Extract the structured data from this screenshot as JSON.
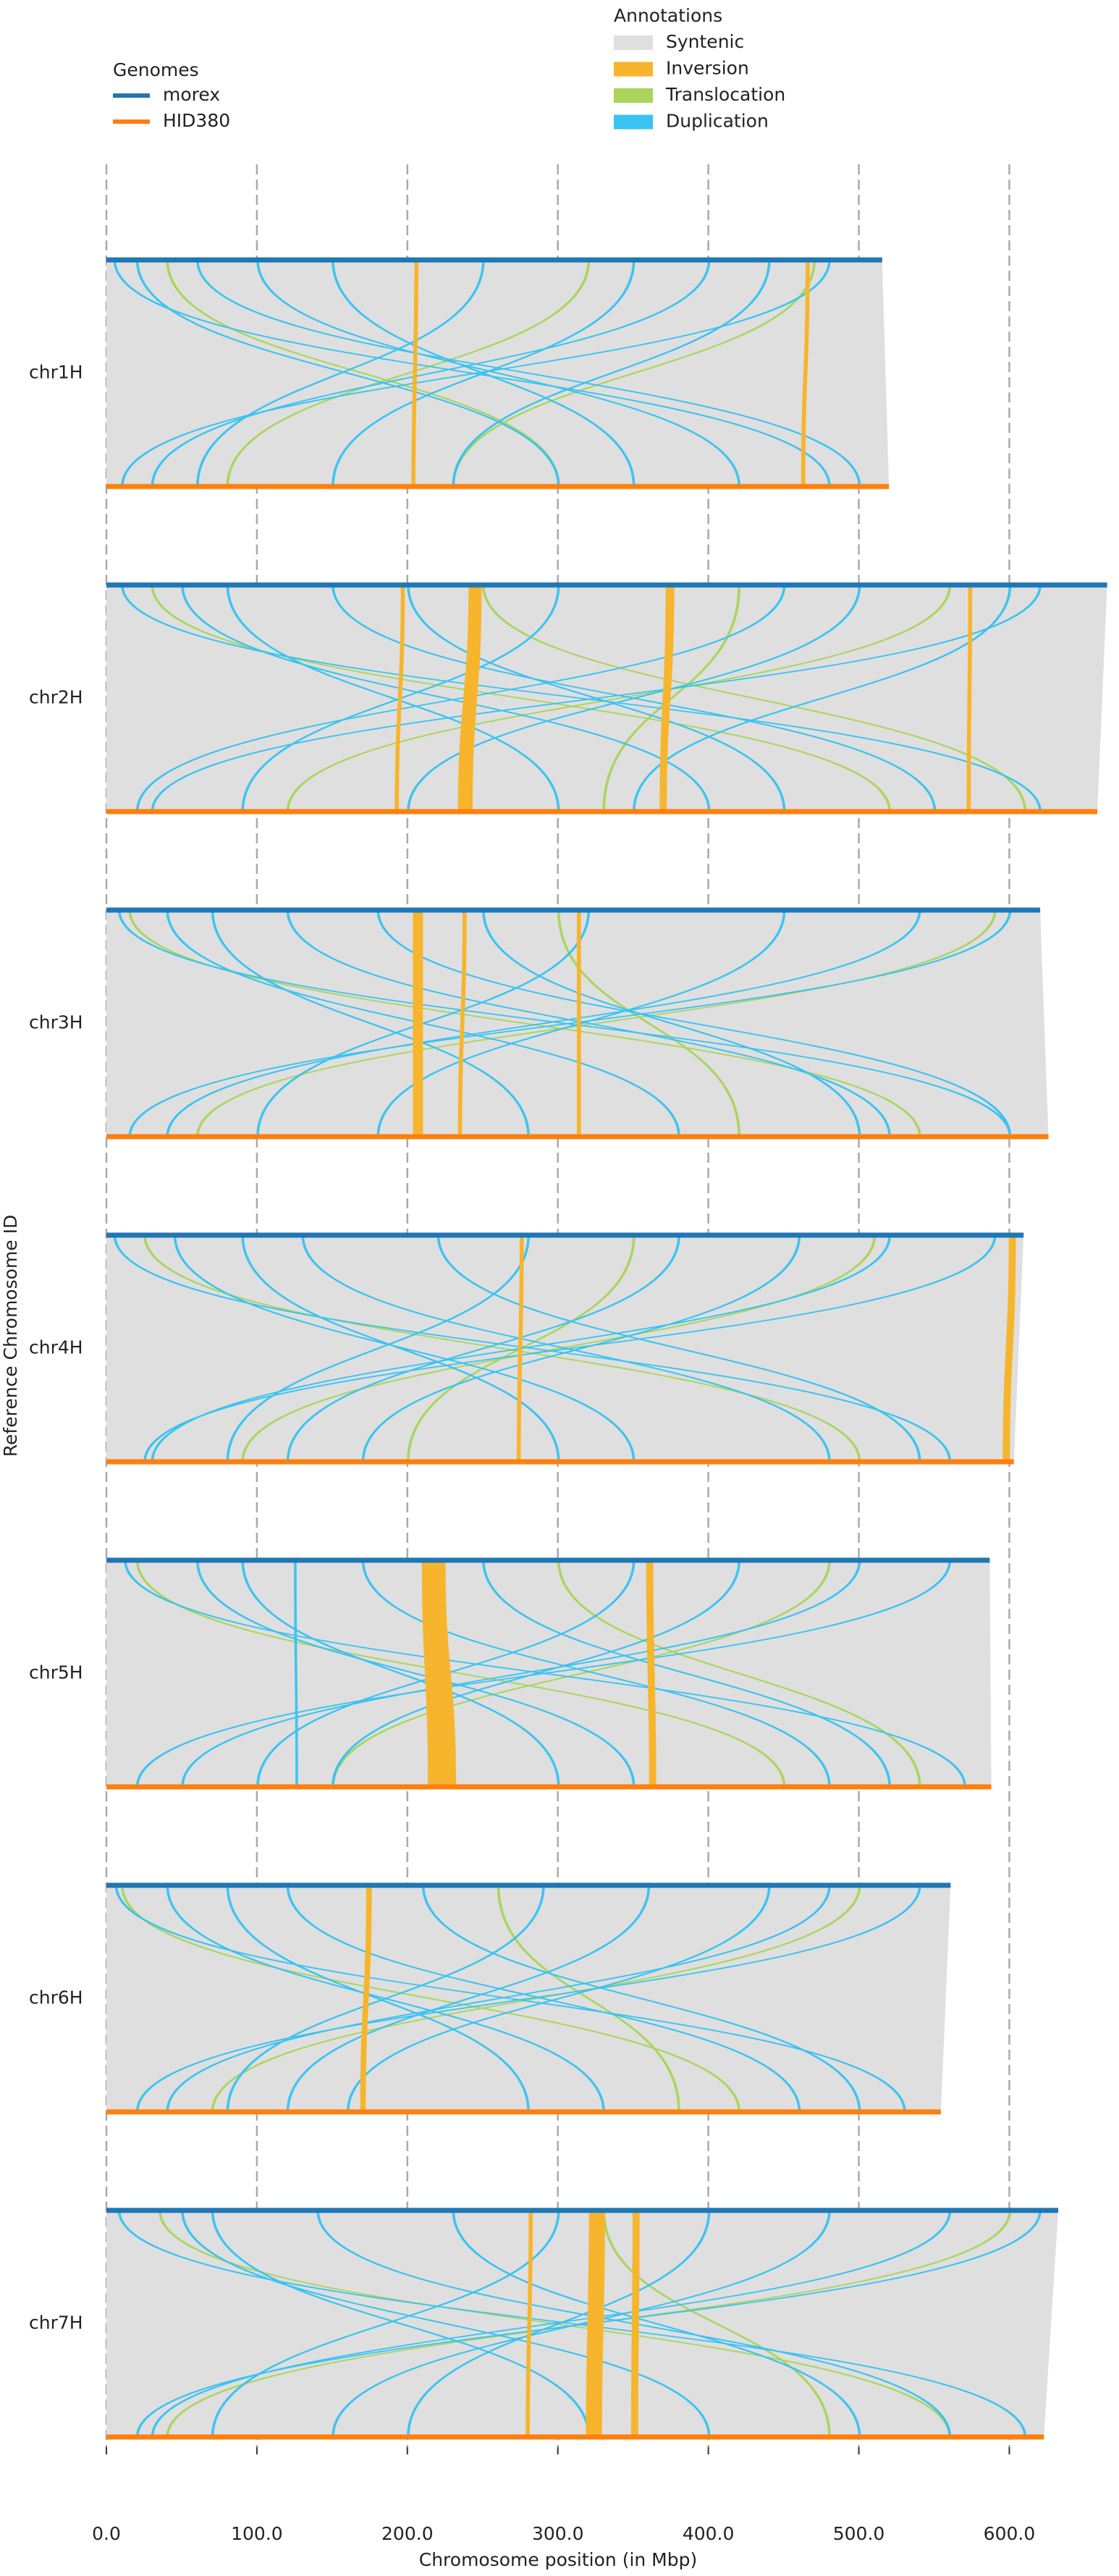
{
  "chart_data": {
    "type": "synteny",
    "xlabel": "Chromosome position (in Mbp)",
    "ylabel": "Reference Chromosome ID",
    "xlim": [
      0,
      670
    ],
    "xticks": [
      {
        "value": 0,
        "label": "0.0"
      },
      {
        "value": 100,
        "label": "100.0"
      },
      {
        "value": 200,
        "label": "200.0"
      },
      {
        "value": 300,
        "label": "300.0"
      },
      {
        "value": 400,
        "label": "400.0"
      },
      {
        "value": 500,
        "label": "500.0"
      },
      {
        "value": 600,
        "label": "600.0"
      }
    ],
    "grid": true,
    "categories": [
      "chr1H",
      "chr2H",
      "chr3H",
      "chr4H",
      "chr5H",
      "chr6H",
      "chr7H"
    ],
    "genomes_title": "Genomes",
    "series": [
      {
        "name": "morex",
        "color": "#1f77b4",
        "values": [
          515.5,
          665,
          620.5,
          609.5,
          587,
          561,
          632.5
        ]
      },
      {
        "name": "HID380",
        "color": "#ff7f0e",
        "values": [
          520,
          658.5,
          626,
          603,
          588,
          554.5,
          623
        ]
      }
    ],
    "annotations_title": "Annotations",
    "annotations": [
      {
        "name": "Syntenic",
        "color": "#dfdfdf"
      },
      {
        "name": "Inversion",
        "color": "#f6b52d",
        "regions": [
          [
            [
              205,
              207,
              203,
              205
            ],
            [
              465,
              467,
              462,
              464
            ]
          ],
          [
            [
              241,
              249,
              234,
              243
            ],
            [
              372,
              377,
              368,
              372
            ],
            [
              196,
              198,
              192,
              194
            ],
            [
              573,
              575,
              572,
              574
            ]
          ],
          [
            [
              204,
              210,
              204,
              210
            ],
            [
              237,
              239,
              234,
              236
            ],
            [
              313,
              315,
              313,
              315
            ]
          ],
          [
            [
              275,
              277,
              273,
              275
            ],
            [
              600,
              604,
              596,
              600
            ]
          ],
          [
            [
              210,
              225,
              214,
              232
            ],
            [
              359,
              363,
              361,
              365
            ]
          ],
          [
            [
              173,
              176,
              169,
              172
            ]
          ],
          [
            [
              321,
              331,
              319,
              329
            ],
            [
              350,
              354,
              349,
              353
            ],
            [
              281,
              283,
              279,
              281
            ]
          ]
        ]
      },
      {
        "name": "Translocation",
        "color": "#a8d55a",
        "regions": [
          [
            [
              40,
              41,
              300,
              301
            ],
            [
              320,
              321,
              80,
              81
            ],
            [
              470,
              471,
              230,
              231
            ]
          ],
          [
            [
              30,
              31,
              520,
              521
            ],
            [
              250,
              251,
              610,
              611
            ],
            [
              560,
              561,
              120,
              121
            ],
            [
              420,
              421,
              330,
              331
            ]
          ],
          [
            [
              15,
              16,
              540,
              541
            ],
            [
              590,
              591,
              60,
              61
            ],
            [
              300,
              301,
              420,
              421
            ]
          ],
          [
            [
              25,
              26,
              500,
              501
            ],
            [
              510,
              511,
              90,
              91
            ],
            [
              350,
              351,
              200,
              201
            ]
          ],
          [
            [
              20,
              21,
              450,
              451
            ],
            [
              480,
              481,
              150,
              151
            ],
            [
              300,
              301,
              540,
              541
            ]
          ],
          [
            [
              10,
              11,
              420,
              421
            ],
            [
              500,
              501,
              70,
              71
            ],
            [
              260,
              261,
              380,
              381
            ]
          ],
          [
            [
              35,
              36,
              560,
              561
            ],
            [
              600,
              601,
              40,
              41
            ],
            [
              330,
              331,
              480,
              481
            ]
          ]
        ]
      },
      {
        "name": "Duplication",
        "color": "#39c3f2",
        "regions": [
          [
            [
              5,
              6,
              480,
              481
            ],
            [
              20,
              21,
              300,
              301
            ],
            [
              480,
              481,
              10,
              11
            ],
            [
              250,
              251,
              60,
              61
            ],
            [
              100,
              101,
              420,
              421
            ],
            [
              350,
              351,
              150,
              151
            ],
            [
              440,
              441,
              230,
              231
            ],
            [
              60,
              61,
              500,
              501
            ],
            [
              400,
              401,
              30,
              31
            ],
            [
              150,
              151,
              350,
              351
            ]
          ],
          [
            [
              10,
              11,
              620,
              621
            ],
            [
              50,
              51,
              400,
              401
            ],
            [
              620,
              621,
              30,
              31
            ],
            [
              300,
              301,
              90,
              91
            ],
            [
              150,
              151,
              550,
              551
            ],
            [
              500,
              501,
              200,
              201
            ],
            [
              200,
              201,
              450,
              451
            ],
            [
              80,
              81,
              300,
              301
            ],
            [
              450,
              451,
              20,
              21
            ],
            [
              600,
              601,
              350,
              351
            ]
          ],
          [
            [
              8,
              9,
              600,
              601
            ],
            [
              40,
              41,
              380,
              381
            ],
            [
              600,
              601,
              15,
              16
            ],
            [
              320,
              321,
              100,
              101
            ],
            [
              120,
              121,
              520,
              521
            ],
            [
              450,
              451,
              180,
              181
            ],
            [
              250,
              251,
              500,
              501
            ],
            [
              70,
              71,
              280,
              281
            ],
            [
              540,
              541,
              40,
              41
            ],
            [
              180,
              181,
              600,
              601
            ]
          ],
          [
            [
              5,
              6,
              560,
              561
            ],
            [
              45,
              46,
              350,
              351
            ],
            [
              590,
              591,
              25,
              26
            ],
            [
              280,
              281,
              80,
              81
            ],
            [
              130,
              131,
              480,
              481
            ],
            [
              460,
              461,
              170,
              171
            ],
            [
              220,
              221,
              540,
              541
            ],
            [
              90,
              91,
              300,
              301
            ],
            [
              520,
              521,
              30,
              31
            ],
            [
              380,
              381,
              120,
              121
            ]
          ],
          [
            [
              12,
              13,
              570,
              571
            ],
            [
              60,
              61,
              350,
              351
            ],
            [
              560,
              561,
              20,
              21
            ],
            [
              125,
              126,
              126,
              127
            ],
            [
              170,
              171,
              480,
              481
            ],
            [
              420,
              421,
              150,
              151
            ],
            [
              250,
              251,
              520,
              521
            ],
            [
              90,
              91,
              300,
              301
            ],
            [
              500,
              501,
              50,
              51
            ],
            [
              350,
              351,
              100,
              101
            ]
          ],
          [
            [
              6,
              7,
              530,
              531
            ],
            [
              40,
              41,
              330,
              331
            ],
            [
              540,
              541,
              20,
              21
            ],
            [
              290,
              291,
              80,
              81
            ],
            [
              120,
              121,
              460,
              461
            ],
            [
              440,
              441,
              160,
              161
            ],
            [
              210,
              211,
              500,
              501
            ],
            [
              80,
              81,
              280,
              281
            ],
            [
              480,
              481,
              40,
              41
            ],
            [
              360,
              361,
              120,
              121
            ]
          ],
          [
            [
              8,
              9,
              610,
              611
            ],
            [
              50,
              51,
              400,
              401
            ],
            [
              620,
              621,
              20,
              21
            ],
            [
              300,
              301,
              70,
              71
            ],
            [
              140,
              141,
              560,
              561
            ],
            [
              480,
              481,
              150,
              151
            ],
            [
              230,
              231,
              500,
              501
            ],
            [
              70,
              71,
              320,
              321
            ],
            [
              560,
              561,
              30,
              31
            ],
            [
              400,
              401,
              200,
              201
            ]
          ]
        ]
      }
    ]
  }
}
